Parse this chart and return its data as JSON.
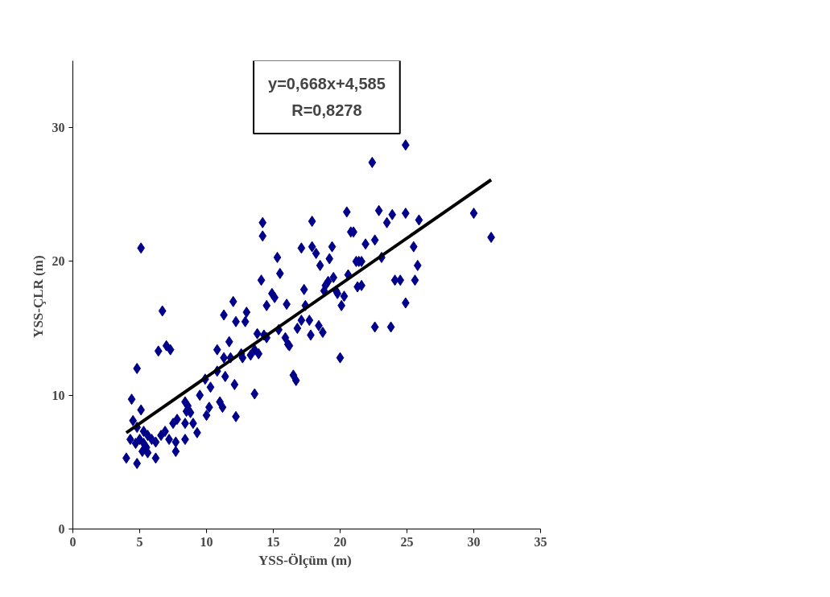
{
  "chart_data": {
    "type": "scatter",
    "xlabel": "YSS-Ölçüm  (m)",
    "ylabel": "YSS-ÇLR  (m)",
    "xlim": [
      0,
      35
    ],
    "ylim": [
      0,
      35
    ],
    "xticks": [
      0,
      5,
      10,
      15,
      20,
      25,
      30,
      35
    ],
    "yticks": [
      0,
      10,
      20,
      30
    ],
    "grid": false,
    "annotations": [
      "y=0,668x+4,585\nR=0,8278"
    ],
    "series": [
      {
        "marker": "diamond",
        "color": "#00008b",
        "x": [
          4.0,
          4.8,
          4.4,
          4.8,
          5.1,
          5.1,
          4.5,
          4.8,
          5.0,
          5.3,
          5.6,
          5.9,
          5.2,
          5.5,
          4.7,
          6.2,
          6.6,
          6.9,
          7.2,
          6.2,
          5.6,
          5.3,
          4.3,
          7.5,
          7.7,
          7.8,
          7.7,
          8.4,
          8.5,
          8.4,
          7.3,
          6.4,
          7.0,
          6.7,
          8.4,
          8.6,
          8.8,
          9.3,
          9.0,
          9.5,
          10.0,
          10.2,
          9.9,
          10.3,
          10.8,
          10.8,
          11.0,
          11.2,
          11.3,
          11.3,
          11.4,
          11.7,
          11.8,
          12.1,
          12.2,
          12.0,
          12.2,
          12.6,
          12.7,
          12.9,
          13.0,
          13.3,
          13.6,
          13.6,
          13.8,
          13.9,
          14.2,
          14.2,
          14.5,
          14.1,
          14.3,
          14.5,
          14.9,
          15.1,
          15.3,
          15.4,
          15.5,
          15.9,
          16.1,
          16.0,
          16.2,
          16.5,
          16.7,
          16.8,
          17.1,
          17.1,
          17.3,
          17.4,
          17.9,
          17.7,
          17.8,
          17.9,
          18.2,
          18.4,
          18.5,
          18.7,
          18.8,
          18.9,
          19.1,
          19.2,
          19.4,
          19.5,
          19.7,
          19.8,
          20.0,
          20.1,
          20.3,
          20.5,
          20.6,
          20.8,
          21.0,
          21.2,
          21.3,
          21.4,
          21.6,
          21.6,
          21.9,
          22.4,
          22.6,
          22.6,
          22.9,
          23.1,
          23.5,
          23.8,
          23.9,
          24.1,
          24.5,
          24.9,
          24.9,
          25.5,
          25.6,
          25.8,
          25.9,
          30.0,
          31.3,
          24.9
        ],
        "values": [
          5.3,
          4.9,
          9.7,
          12.0,
          8.9,
          21.0,
          8.1,
          7.6,
          6.7,
          6.4,
          7.0,
          6.7,
          5.8,
          6.1,
          6.4,
          6.5,
          7.0,
          7.3,
          6.7,
          5.3,
          5.7,
          7.3,
          6.7,
          7.9,
          5.8,
          8.2,
          6.5,
          7.9,
          8.8,
          6.7,
          13.4,
          13.3,
          13.7,
          16.3,
          9.5,
          9.2,
          8.7,
          7.2,
          7.9,
          10.0,
          8.5,
          9.1,
          11.2,
          10.6,
          13.4,
          11.8,
          9.5,
          9.1,
          12.8,
          16.0,
          11.4,
          14.0,
          12.8,
          10.8,
          8.4,
          17.0,
          15.5,
          13.1,
          12.8,
          15.5,
          16.2,
          13.0,
          13.4,
          10.1,
          14.6,
          13.1,
          22.9,
          21.9,
          16.7,
          18.6,
          14.5,
          14.3,
          17.6,
          17.3,
          20.3,
          14.9,
          19.1,
          14.3,
          13.8,
          16.8,
          13.7,
          11.5,
          11.1,
          15.0,
          15.6,
          21.0,
          17.9,
          16.7,
          23.0,
          15.6,
          14.5,
          21.1,
          20.6,
          15.2,
          19.7,
          14.7,
          17.8,
          18.2,
          18.5,
          20.2,
          21.1,
          18.8,
          17.8,
          17.6,
          12.8,
          16.7,
          17.4,
          23.7,
          19.0,
          22.2,
          22.2,
          20.0,
          18.1,
          20.0,
          20.0,
          18.2,
          21.3,
          27.4,
          15.1,
          21.6,
          23.8,
          20.3,
          22.9,
          15.1,
          23.5,
          18.6,
          18.6,
          23.6,
          16.9,
          21.1,
          18.6,
          19.7,
          23.1,
          23.6,
          21.8,
          28.7
        ]
      },
      {
        "type": "line",
        "color": "#000000",
        "x": [
          4.0,
          31.3
        ],
        "values": [
          7.2,
          26.1
        ]
      }
    ]
  }
}
